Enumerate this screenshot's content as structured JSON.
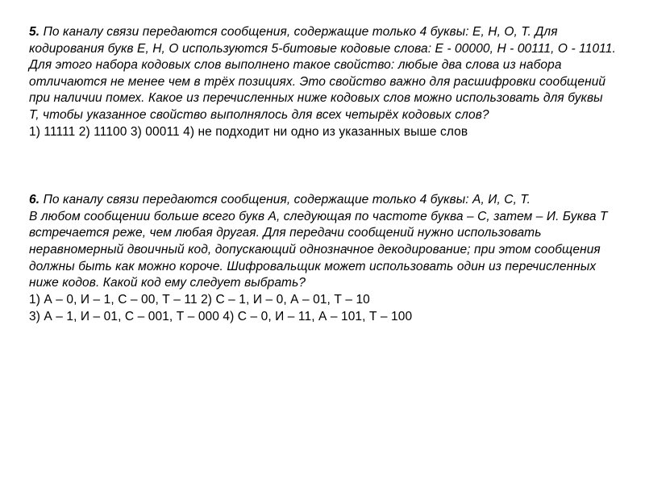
{
  "background_color": "#ffffff",
  "text_color": "#000000",
  "font_family": "Arial",
  "font_size_pt": 12,
  "line_height": 1.33,
  "problems": {
    "p5": {
      "number": "5.",
      "body": "По каналу связи передаются сообщения, содержащие только 4 буквы: Е, Н, О, Т. Для кодирования букв Е, Н, О используются 5-битовые кодовые слова: Е - 00000, Н - 00111, О - 11011. Для этого набора кодовых слов выполнено такое свойство: любые два слова из набора отличаются не менее чем в трёх позициях. Это свойство важно для расшифровки сообщений при наличии помех. Какое из перечисленных ниже кодовых слов можно использовать для буквы Т, чтобы указанное свойство выполнялось для всех четырёх кодовых слов?",
      "answers": "1) 11111  2) 11100   3) 00011  4) не подходит ни одно из указанных выше слов"
    },
    "p6": {
      "number": "6.",
      "body_l1": "По каналу связи передаются сообщения, содержащие только 4 буквы: А, И, С, Т.",
      "body_l2": "В любом сообщении больше всего букв А, следующая по частоте буква – С, затем – И. Буква Т встречается реже, чем любая другая. Для передачи сообщений нужно использовать неравномерный двоичный код, допускающий однозначное декодирование; при этом сообщения должны быть как можно короче. Шифровальщик может использовать один из перечисленных ниже кодов. Какой код ему следует выбрать?",
      "answers_l1": "1) А – 0, И – 1, С – 00, Т – 11         2) С – 1, И – 0, А – 01, Т – 10",
      "answers_l2": "3) А – 1, И – 01, С – 001, Т – 000          4) С – 0, И – 11, А – 101, Т – 100"
    }
  }
}
